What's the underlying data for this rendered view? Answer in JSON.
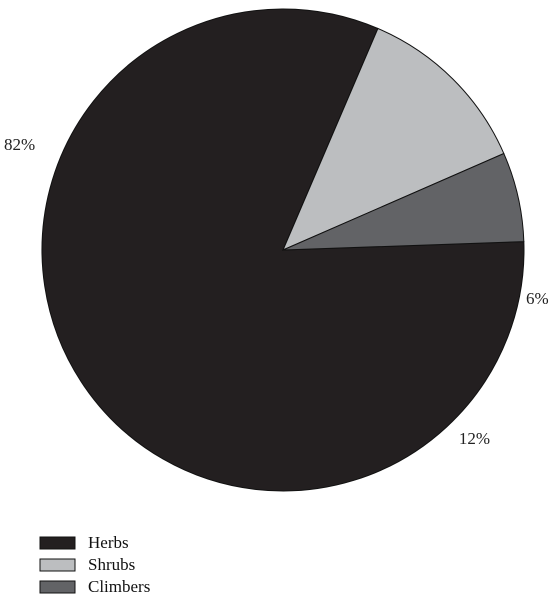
{
  "chart_data": {
    "type": "pie",
    "title": "",
    "categories": [
      "Herbs",
      "Shrubs",
      "Climbers"
    ],
    "values": [
      82,
      12,
      6
    ],
    "value_labels": [
      "82%",
      "12%",
      "6%"
    ],
    "colors": [
      "#231f20",
      "#bcbec0",
      "#626366"
    ],
    "start_angle_deg": -2,
    "direction": "clockwise",
    "legend": {
      "placement": "bottom-left",
      "entries": [
        "Herbs",
        "Shrubs",
        "Climbers"
      ]
    }
  }
}
